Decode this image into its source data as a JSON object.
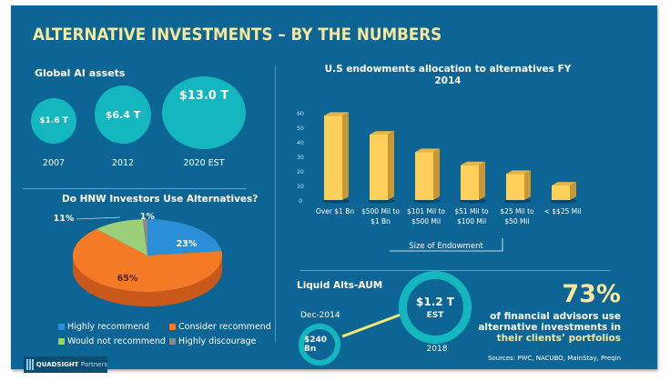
{
  "title": "ALTERNATIVE INVESTMENTS – BY THE NUMBERS",
  "global_assets": {
    "heading": "Global AI assets",
    "bubbles": [
      {
        "value": "$1.6 T",
        "year": "2007"
      },
      {
        "value": "$6.4 T",
        "year": "2012"
      },
      {
        "value": "$13.0 T",
        "year": "2020 EST"
      }
    ]
  },
  "chart_data": [
    {
      "type": "bar",
      "title": "U.S endowments allocation to alternatives FY 2014",
      "categories": [
        "Over $1 Bn",
        "$500 Mil to $1 Bn",
        "$101 Mil to $500 Mil",
        "$51 Mil to $100 Mil",
        "$25 Mil to $50 Mil",
        "< $$25 Mil"
      ],
      "category_lines": [
        [
          "Over $1 Bn"
        ],
        [
          "$500 Mil to",
          "$1 Bn"
        ],
        [
          "$101 Mil to",
          "$500 Mil"
        ],
        [
          "$51 Mil to",
          "$100 Mil"
        ],
        [
          "$25 Mil to",
          "$50 Mil"
        ],
        [
          "< $$25 Mil"
        ]
      ],
      "values": [
        58,
        45,
        33,
        24,
        18,
        10
      ],
      "yticks": [
        0,
        10,
        20,
        30,
        40,
        50,
        60
      ],
      "ylim": [
        0,
        60
      ],
      "xlabel": "Size of Endowment",
      "ylabel": "",
      "grid": false,
      "bar_color": "#fdd05c",
      "bar_side_color": "#c99835"
    },
    {
      "type": "pie",
      "title": "Do HNW Investors Use Alternatives?",
      "slices": [
        {
          "label": "Highly recommend",
          "value": 23,
          "display": "23%",
          "color": "#2a8fd6"
        },
        {
          "label": "Consider recommend",
          "value": 65,
          "display": "65%",
          "color": "#f47a25"
        },
        {
          "label": "Would not recommend",
          "value": 11,
          "display": "11%",
          "color": "#9ccf79"
        },
        {
          "label": "Highly discourage",
          "value": 1,
          "display": "1%",
          "color": "#8a8a8a"
        }
      ],
      "legend": "bottom"
    }
  ],
  "liquid_alts": {
    "heading": "Liquid Alts-AUM",
    "start": {
      "date": "Dec-2014",
      "value": "$240 Bn"
    },
    "end": {
      "value": "$1.2 T",
      "note": "EST",
      "year": "2018"
    }
  },
  "advisors_stat": {
    "percent": "73%",
    "line1": "of financial advisors use",
    "line2": "alternative investments in",
    "line3": "their clients’ portfolios"
  },
  "sources": "Sources: PWC, NACUBO, MainStay, Preqin",
  "logo": {
    "brand": "QUADSIGHT",
    "suffix": "Partners"
  },
  "colors": {
    "background": "#0c6594",
    "accent_yellow": "#f6e89a",
    "teal": "#14b7bd",
    "link_line": "#f2e87a"
  }
}
